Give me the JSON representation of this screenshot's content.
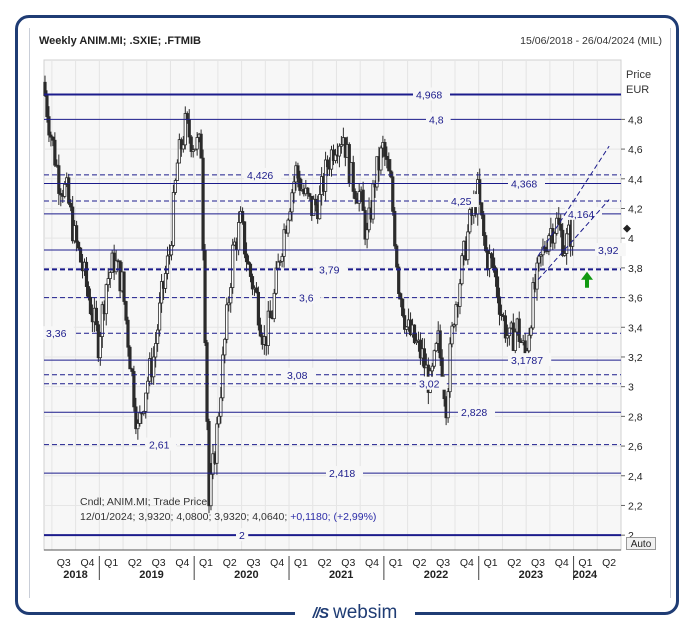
{
  "header": {
    "title": "Weekly ANIM.MI; .SXIE; .FTMIB",
    "date_range": "15/06/2018 - 26/04/2024 (MIL)"
  },
  "axis": {
    "price_label": "Price",
    "currency_label": "EUR",
    "auto_button": "Auto"
  },
  "cursor_info": {
    "line1": "Cndl; ANIM.MI; Trade Price",
    "line2_values": "12/01/2024; 3,9320; 4,0800; 3,9320; 4,0640;",
    "line2_change": "+0,1180; (+2,99%)"
  },
  "brand": {
    "logo": "//S",
    "name": "websim"
  },
  "colors": {
    "frame": "#1f3c74",
    "levels": "#1c1c8c",
    "candles": "#2b2b2b",
    "arrow": "#119911"
  },
  "chart_data": {
    "type": "candlestick",
    "title": "Weekly ANIM.MI; .SXIE; .FTMIB",
    "ylabel": "Price EUR",
    "ylim": [
      2,
      5.2
    ],
    "x_range": [
      "15/06/2018",
      "26/04/2024"
    ],
    "y_ticks": [
      "2",
      "2,2",
      "2,4",
      "2,6",
      "2,8",
      "3",
      "3,2",
      "3,4",
      "3,6",
      "3,8",
      "4",
      "4,2",
      "4,4",
      "4,6",
      "4,8"
    ],
    "x_quarter_ticks": [
      "Q3",
      "Q4",
      "Q1",
      "Q2",
      "Q3",
      "Q4",
      "Q1",
      "Q2",
      "Q3",
      "Q4",
      "Q1",
      "Q2",
      "Q3",
      "Q4",
      "Q1",
      "Q2",
      "Q3",
      "Q4",
      "Q1",
      "Q2",
      "Q3",
      "Q4",
      "Q1",
      "Q2"
    ],
    "x_year_labels": [
      "2018",
      "2019",
      "2020",
      "2021",
      "2022",
      "2023",
      "2024"
    ],
    "last_price_marker": 4.064,
    "levels": [
      {
        "value": 4.968,
        "label": "4,968",
        "style": "solid-thick"
      },
      {
        "value": 4.8,
        "label": "4,8",
        "style": "solid"
      },
      {
        "value": 4.426,
        "label": "4,426",
        "style": "dashed"
      },
      {
        "value": 4.368,
        "label": "4,368",
        "style": "solid"
      },
      {
        "value": 4.25,
        "label": "4,25",
        "style": "dashed"
      },
      {
        "value": 4.164,
        "label": "4,164",
        "style": "solid"
      },
      {
        "value": 3.92,
        "label": "3,92",
        "style": "solid"
      },
      {
        "value": 3.79,
        "label": "3,79",
        "style": "dashed-thick"
      },
      {
        "value": 3.6,
        "label": "3,6",
        "style": "dashed"
      },
      {
        "value": 3.36,
        "label": "3,36",
        "style": "dashed"
      },
      {
        "value": 3.1787,
        "label": "3,1787",
        "style": "solid"
      },
      {
        "value": 3.08,
        "label": "3,08",
        "style": "dashed"
      },
      {
        "value": 3.02,
        "label": "3,02",
        "style": "dashed"
      },
      {
        "value": 2.828,
        "label": "2,828",
        "style": "solid"
      },
      {
        "value": 2.61,
        "label": "2,61",
        "style": "dashed"
      },
      {
        "value": 2.418,
        "label": "2,418",
        "style": "solid"
      },
      {
        "value": 2.0,
        "label": "2",
        "style": "solid-thick"
      }
    ],
    "trend_channel": [
      {
        "from": [
          "2023-Q3",
          3.88
        ],
        "to": [
          "2024-Q2",
          4.62
        ]
      },
      {
        "from": [
          "2023-Q3",
          3.72
        ],
        "to": [
          "2024-Q2",
          4.26
        ]
      }
    ],
    "close_path": [
      [
        "2018-06",
        5.05
      ],
      [
        "2018-07",
        4.7
      ],
      [
        "2018-08",
        4.4
      ],
      [
        "2018-09",
        4.3
      ],
      [
        "2018-10",
        4.0
      ],
      [
        "2018-11",
        3.8
      ],
      [
        "2018-12",
        3.55
      ],
      [
        "2019-01",
        3.3
      ],
      [
        "2019-02",
        3.7
      ],
      [
        "2019-03",
        3.85
      ],
      [
        "2019-04",
        3.7
      ],
      [
        "2019-05",
        3.2
      ],
      [
        "2019-06",
        2.7
      ],
      [
        "2019-07",
        3.0
      ],
      [
        "2019-08",
        3.2
      ],
      [
        "2019-09",
        3.6
      ],
      [
        "2019-10",
        3.9
      ],
      [
        "2019-11",
        4.5
      ],
      [
        "2019-12",
        4.75
      ],
      [
        "2020-01",
        4.65
      ],
      [
        "2020-02",
        4.6
      ],
      [
        "2020-03",
        2.2
      ],
      [
        "2020-04",
        2.7
      ],
      [
        "2020-05",
        3.3
      ],
      [
        "2020-06",
        3.9
      ],
      [
        "2020-07",
        4.1
      ],
      [
        "2020-08",
        3.8
      ],
      [
        "2020-09",
        3.6
      ],
      [
        "2020-10",
        3.3
      ],
      [
        "2020-11",
        3.5
      ],
      [
        "2020-12",
        3.9
      ],
      [
        "2021-01",
        4.2
      ],
      [
        "2021-02",
        4.45
      ],
      [
        "2021-03",
        4.3
      ],
      [
        "2021-04",
        4.2
      ],
      [
        "2021-05",
        4.25
      ],
      [
        "2021-06",
        4.5
      ],
      [
        "2021-07",
        4.65
      ],
      [
        "2021-08",
        4.7
      ],
      [
        "2021-09",
        4.4
      ],
      [
        "2021-10",
        4.3
      ],
      [
        "2021-11",
        4.0
      ],
      [
        "2021-12",
        4.4
      ],
      [
        "2022-01",
        4.6
      ],
      [
        "2022-02",
        4.35
      ],
      [
        "2022-03",
        3.7
      ],
      [
        "2022-04",
        3.4
      ],
      [
        "2022-05",
        3.3
      ],
      [
        "2022-06",
        3.2
      ],
      [
        "2022-07",
        3.0
      ],
      [
        "2022-08",
        3.3
      ],
      [
        "2022-09",
        2.9
      ],
      [
        "2022-10",
        3.5
      ],
      [
        "2022-11",
        3.8
      ],
      [
        "2022-12",
        4.1
      ],
      [
        "2023-01",
        4.3
      ],
      [
        "2023-02",
        3.9
      ],
      [
        "2023-03",
        3.8
      ],
      [
        "2023-04",
        3.5
      ],
      [
        "2023-05",
        3.3
      ],
      [
        "2023-06",
        3.4
      ],
      [
        "2023-07",
        3.2
      ],
      [
        "2023-08",
        3.6
      ],
      [
        "2023-09",
        3.85
      ],
      [
        "2023-10",
        4.05
      ],
      [
        "2023-11",
        4.1
      ],
      [
        "2023-12",
        3.95
      ],
      [
        "2024-01",
        4.06
      ]
    ]
  }
}
